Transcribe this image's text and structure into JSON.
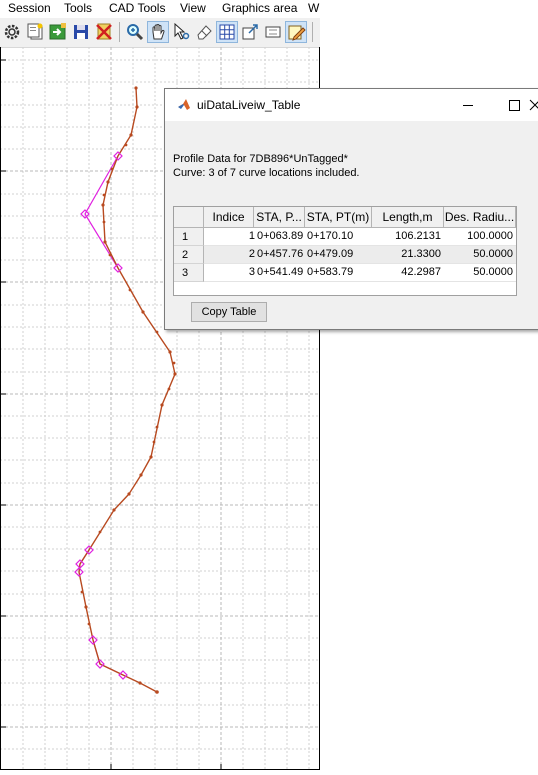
{
  "menubar": {
    "items": [
      "Session",
      "Tools",
      "CAD Tools",
      "View",
      "Graphics area",
      "W"
    ]
  },
  "toolbar": {
    "buttons": [
      {
        "icon": "gear-icon",
        "active": false
      },
      {
        "icon": "new-document-icon",
        "active": false
      },
      {
        "icon": "import-icon",
        "active": false
      },
      {
        "icon": "save-icon",
        "active": false
      },
      {
        "icon": "delete-icon",
        "active": false
      },
      {
        "icon": "zoom-icon",
        "active": false
      },
      {
        "icon": "pan-hand-icon",
        "active": true
      },
      {
        "icon": "pick-point-icon",
        "active": false
      },
      {
        "icon": "eraser-icon",
        "active": false
      },
      {
        "icon": "grid-icon",
        "active": true
      },
      {
        "icon": "export-icon",
        "active": false
      },
      {
        "icon": "fit-extent-icon",
        "active": false
      },
      {
        "icon": "edit-notes-icon",
        "active": true
      }
    ]
  },
  "plot": {
    "grid": true,
    "alignment_color": "#c0522a",
    "tangent_color": "#e020e0"
  },
  "dialog": {
    "title": "uiDataLiveiw_Table",
    "info_line1": "Profile Data for 7DB896*UnTagged*",
    "info_line2": "Curve: 3 of 7 curve locations included.",
    "table": {
      "columns": [
        "Indice",
        "STA, P...",
        "STA, PT(m)",
        "Length,m",
        "Des. Radiu..."
      ],
      "rows": [
        {
          "num": "1",
          "indice": "1",
          "sta_pc": "0+063.89",
          "sta_pt": "0+170.10",
          "length": "106.2131",
          "radius": "100.0000"
        },
        {
          "num": "2",
          "indice": "2",
          "sta_pc": "0+457.76",
          "sta_pt": "0+479.09",
          "length": "21.3300",
          "radius": "50.0000"
        },
        {
          "num": "3",
          "indice": "3",
          "sta_pc": "0+541.49",
          "sta_pt": "0+583.79",
          "length": "42.2987",
          "radius": "50.0000"
        }
      ]
    },
    "copy_button": "Copy Table"
  }
}
